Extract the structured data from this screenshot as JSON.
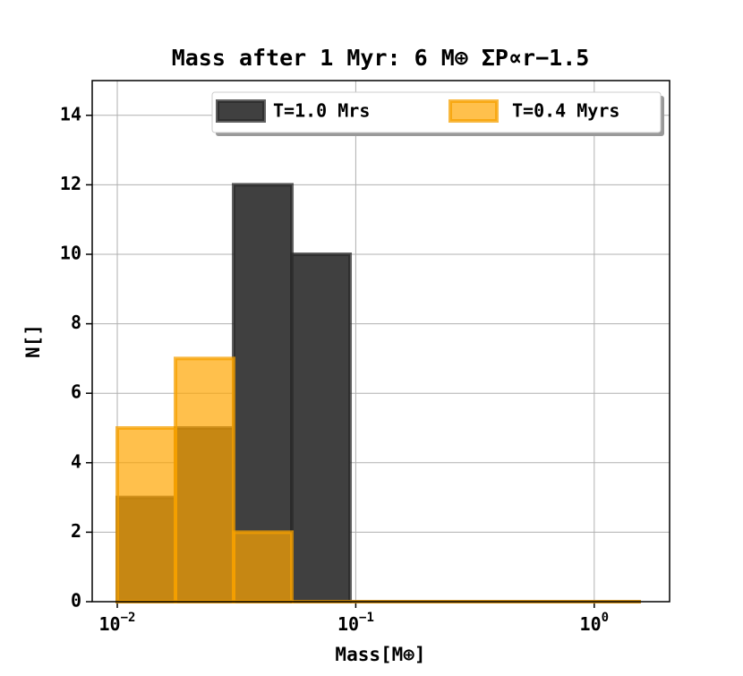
{
  "chart_data": {
    "type": "histogram",
    "title": "Mass after 1 Myr: 6 M⊕ ΣP∝r−1.5",
    "xlabel": "Mass[M⊕]",
    "ylabel": "N[]",
    "xscale": "log",
    "bins": [
      0.01,
      0.01754,
      0.03076,
      0.05395,
      0.09462,
      0.166,
      0.2911,
      0.5106,
      0.8955,
      1.57
    ],
    "series": [
      {
        "name": "T=1.0 Mrs",
        "color": "#404040",
        "edgecolor": "#2a2a2a",
        "values": [
          3,
          5,
          12,
          10,
          0,
          0,
          0,
          0,
          0
        ]
      },
      {
        "name": "T=0.4 Myrs",
        "color": "#ffa500",
        "edgecolor": "#f5a000",
        "values": [
          5,
          7,
          2,
          0,
          0,
          0,
          0,
          0,
          0
        ]
      }
    ],
    "xlim": [
      0.00785,
      2.07
    ],
    "ylim": [
      0,
      15
    ],
    "xticks": [
      {
        "value": 0.01,
        "label": "10−2"
      },
      {
        "value": 0.1,
        "label": "10−1"
      },
      {
        "value": 1,
        "label": "100"
      }
    ],
    "yticks": [
      0,
      2,
      4,
      6,
      8,
      10,
      12,
      14
    ],
    "grid": true,
    "legend": "upper right"
  }
}
